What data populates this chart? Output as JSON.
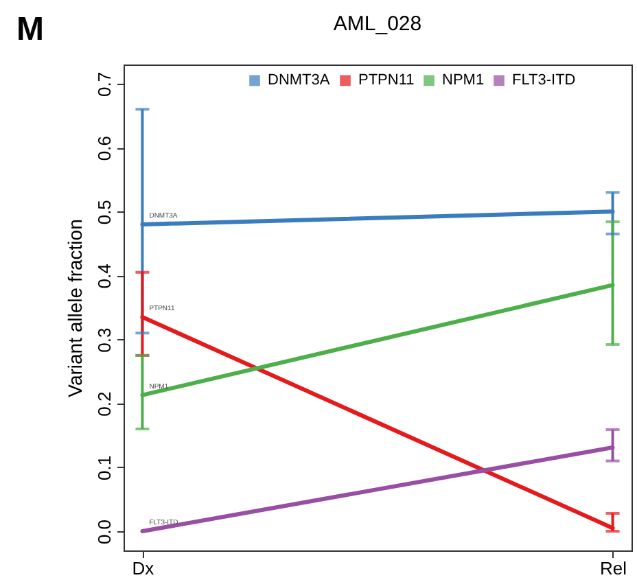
{
  "chart_data": {
    "type": "line",
    "title": "AML_028",
    "ylabel": "Variant allele fraction",
    "categories": [
      "Dx",
      "Rel"
    ],
    "series": [
      {
        "name": "DNMT3A",
        "color": "#3a7dbf",
        "values": [
          0.48,
          0.5
        ],
        "errors": [
          [
            0.31,
            0.66
          ],
          [
            0.465,
            0.53
          ]
        ]
      },
      {
        "name": "PTPN11",
        "color": "#e41a1c",
        "values": [
          0.335,
          0.005
        ],
        "errors": [
          [
            0.275,
            0.405
          ],
          [
            0.0,
            0.028
          ]
        ]
      },
      {
        "name": "NPM1",
        "color": "#4daf4a",
        "values": [
          0.213,
          0.385
        ],
        "errors": [
          [
            0.16,
            0.275
          ],
          [
            0.292,
            0.484
          ]
        ]
      },
      {
        "name": "FLT3-ITD",
        "color": "#984ea3",
        "values": [
          0.0,
          0.131
        ],
        "errors": [
          null,
          [
            0.11,
            0.159
          ]
        ]
      }
    ],
    "ylim": [
      -0.03,
      0.73
    ],
    "yticks": [
      {
        "value": 0,
        "label": "0.0"
      },
      0.1,
      0.2,
      0.3,
      0.4,
      0.5,
      0.6,
      0.7
    ],
    "legend": "top",
    "annotations": [
      "M",
      {
        "text": "DNMT3A",
        "x": "Dx",
        "y": 0.48
      },
      {
        "text": "PTPN11",
        "x": "Dx",
        "y": 0.335
      },
      {
        "text": "NPM1",
        "x": "Dx",
        "y": 0.213
      },
      {
        "text": "FLT3-ITD",
        "x": "Dx",
        "y": 0.0
      }
    ]
  }
}
